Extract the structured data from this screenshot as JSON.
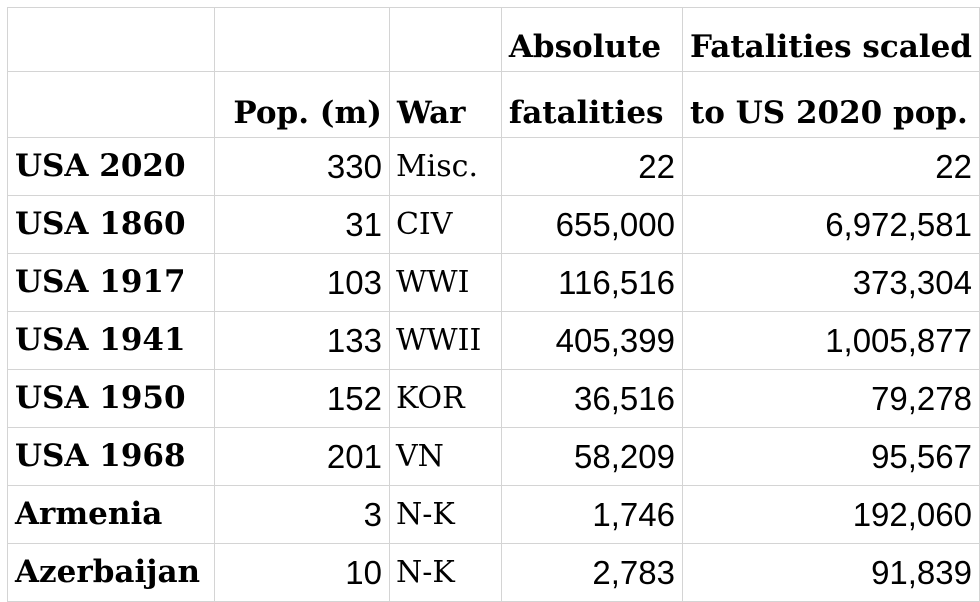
{
  "headers": {
    "row1": [
      "",
      "",
      "",
      "Absolute",
      "Fatalities scaled"
    ],
    "row2": [
      "",
      "Pop. (m)",
      "War",
      "fatalities",
      "to US 2020 pop."
    ]
  },
  "rows": [
    {
      "label": "USA 2020",
      "pop": "330",
      "war": "Misc.",
      "absolute": "22",
      "scaled": "22"
    },
    {
      "label": "USA 1860",
      "pop": "31",
      "war": "CIV",
      "absolute": "655,000",
      "scaled": "6,972,581"
    },
    {
      "label": "USA 1917",
      "pop": "103",
      "war": "WWI",
      "absolute": "116,516",
      "scaled": "373,304"
    },
    {
      "label": "USA 1941",
      "pop": "133",
      "war": "WWII",
      "absolute": "405,399",
      "scaled": "1,005,877"
    },
    {
      "label": "USA 1950",
      "pop": "152",
      "war": "KOR",
      "absolute": "36,516",
      "scaled": "79,278"
    },
    {
      "label": "USA 1968",
      "pop": "201",
      "war": "VN",
      "absolute": "58,209",
      "scaled": "95,567"
    },
    {
      "label": "Armenia",
      "pop": "3",
      "war": "N-K",
      "absolute": "1,746",
      "scaled": "192,060"
    },
    {
      "label": "Azerbaijan",
      "pop": "10",
      "war": "N-K",
      "absolute": "2,783",
      "scaled": "91,839"
    }
  ]
}
